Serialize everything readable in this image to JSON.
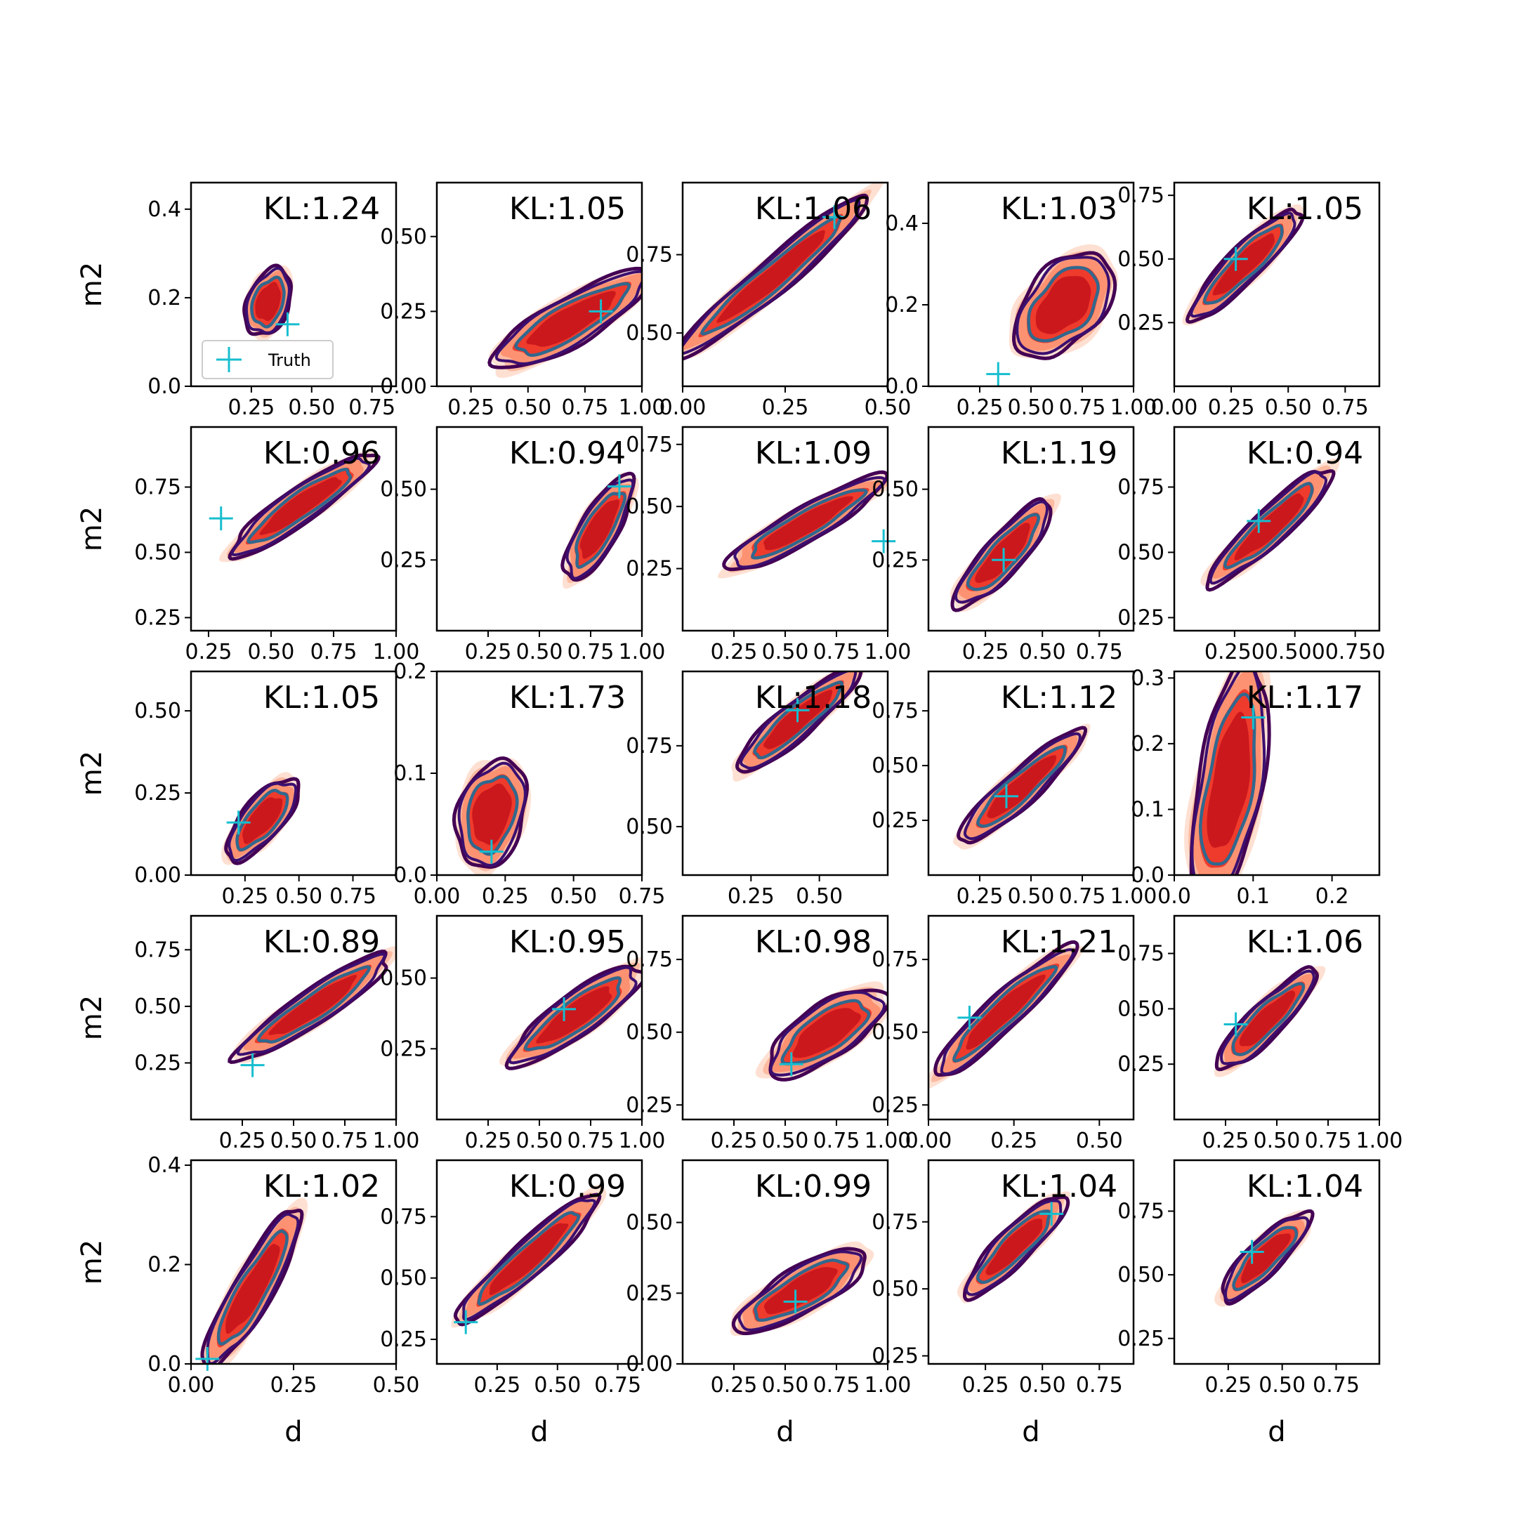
{
  "chart_data": {
    "type": "contour-grid",
    "grid": {
      "rows": 5,
      "cols": 5
    },
    "xlabel": "d",
    "ylabel": "m2",
    "legend": {
      "label": "Truth",
      "marker": "+",
      "color": "#17becf",
      "placement": "lower-left of first panel"
    },
    "colors": {
      "fill_levels": [
        "#fee0d2",
        "#fcbba1",
        "#fc9272",
        "#ef3b2c",
        "#cb181d"
      ],
      "contour_outer": "#440154",
      "contour_mid": "#3b0f70",
      "contour_inner": "#31688e",
      "truth": "#17becf"
    },
    "panels": [
      {
        "kl": "KL:1.24",
        "xlim": [
          0.0,
          0.85
        ],
        "ylim": [
          0.0,
          0.46
        ],
        "xticks": [
          "0.25",
          "0.50",
          "0.75"
        ],
        "xtickv": [
          0.25,
          0.5,
          0.75
        ],
        "yticks": [
          "0.0",
          "0.2",
          "0.4"
        ],
        "ytickv": [
          0.0,
          0.2,
          0.4
        ],
        "cx": 0.32,
        "cy": 0.19,
        "w": 0.26,
        "h": 0.38,
        "ang": 70,
        "truth": [
          0.4,
          0.14
        ],
        "legend": true
      },
      {
        "kl": "KL:1.05",
        "xlim": [
          0.1,
          1.0
        ],
        "ylim": [
          0.0,
          0.68
        ],
        "xticks": [
          "0.25",
          "0.50",
          "0.75",
          "1.00"
        ],
        "xtickv": [
          0.25,
          0.5,
          0.75,
          1.0
        ],
        "yticks": [
          "0.00",
          "0.25",
          "0.50"
        ],
        "ytickv": [
          0.0,
          0.25,
          0.5
        ],
        "cx": 0.69,
        "cy": 0.22,
        "w": 0.7,
        "h": 0.26,
        "ang": 30,
        "truth": [
          0.82,
          0.25
        ]
      },
      {
        "kl": "KL:1.06",
        "xlim": [
          0.0,
          0.5
        ],
        "ylim": [
          0.33,
          0.98
        ],
        "xticks": [
          "0.00",
          "0.25",
          "0.50"
        ],
        "xtickv": [
          0.0,
          0.25,
          0.5
        ],
        "yticks": [
          "0.50",
          "0.75"
        ],
        "ytickv": [
          0.5,
          0.75
        ],
        "cx": 0.22,
        "cy": 0.68,
        "w": 0.55,
        "h": 0.14,
        "ang": 40,
        "truth": [
          0.37,
          0.87
        ]
      },
      {
        "kl": "KL:1.03",
        "xlim": [
          0.0,
          1.0
        ],
        "ylim": [
          0.0,
          0.5
        ],
        "xticks": [
          "0.25",
          "0.50",
          "0.75",
          "1.00"
        ],
        "xtickv": [
          0.25,
          0.5,
          0.75,
          1.0
        ],
        "yticks": [
          "0.0",
          "0.2",
          "0.4"
        ],
        "ytickv": [
          0.0,
          0.2,
          0.4
        ],
        "cx": 0.66,
        "cy": 0.2,
        "w": 0.54,
        "h": 0.38,
        "ang": 48,
        "truth": [
          0.34,
          0.03
        ]
      },
      {
        "kl": "KL:1.05",
        "xlim": [
          0.0,
          0.9
        ],
        "ylim": [
          0.0,
          0.8
        ],
        "xticks": [
          "0.00",
          "0.25",
          "0.50",
          "0.75"
        ],
        "xtickv": [
          0.0,
          0.25,
          0.5,
          0.75
        ],
        "yticks": [
          "0.25",
          "0.50",
          "0.75"
        ],
        "ytickv": [
          0.25,
          0.5,
          0.75
        ],
        "cx": 0.31,
        "cy": 0.48,
        "w": 0.6,
        "h": 0.2,
        "ang": 45,
        "truth": [
          0.27,
          0.5
        ]
      },
      {
        "kl": "KL:0.96",
        "xlim": [
          0.18,
          1.0
        ],
        "ylim": [
          0.2,
          0.98
        ],
        "xticks": [
          "0.25",
          "0.50",
          "0.75",
          "1.00"
        ],
        "xtickv": [
          0.25,
          0.5,
          0.75,
          1.0
        ],
        "yticks": [
          "0.25",
          "0.50",
          "0.75"
        ],
        "ytickv": [
          0.25,
          0.5,
          0.75
        ],
        "cx": 0.62,
        "cy": 0.68,
        "w": 0.62,
        "h": 0.18,
        "ang": 35,
        "truth": [
          0.3,
          0.63
        ]
      },
      {
        "kl": "KL:0.94",
        "xlim": [
          0.0,
          1.0
        ],
        "ylim": [
          0.0,
          0.72
        ],
        "xticks": [
          "0.25",
          "0.50",
          "0.75",
          "1.00"
        ],
        "xtickv": [
          0.25,
          0.5,
          0.75,
          1.0
        ],
        "yticks": [
          "0.25",
          "0.50"
        ],
        "ytickv": [
          0.25,
          0.5
        ],
        "cx": 0.79,
        "cy": 0.36,
        "w": 0.52,
        "h": 0.22,
        "ang": 60,
        "truth": [
          0.89,
          0.51
        ]
      },
      {
        "kl": "KL:1.09",
        "xlim": [
          0.0,
          1.0
        ],
        "ylim": [
          0.0,
          0.82
        ],
        "xticks": [
          "0.25",
          "0.50",
          "0.75",
          "1.00"
        ],
        "xtickv": [
          0.25,
          0.5,
          0.75,
          1.0
        ],
        "yticks": [
          "0.25",
          "0.50",
          "0.75"
        ],
        "ytickv": [
          0.25,
          0.5,
          0.75
        ],
        "cx": 0.6,
        "cy": 0.43,
        "w": 0.8,
        "h": 0.22,
        "ang": 30,
        "truth": [
          0.98,
          0.36
        ]
      },
      {
        "kl": "KL:1.19",
        "xlim": [
          0.0,
          0.9
        ],
        "ylim": [
          0.0,
          0.72
        ],
        "xticks": [
          "0.25",
          "0.50",
          "0.75"
        ],
        "xtickv": [
          0.25,
          0.5,
          0.75
        ],
        "yticks": [
          "0.25",
          "0.50"
        ],
        "ytickv": [
          0.25,
          0.5
        ],
        "cx": 0.33,
        "cy": 0.27,
        "w": 0.55,
        "h": 0.22,
        "ang": 48,
        "truth": [
          0.33,
          0.25
        ]
      },
      {
        "kl": "KL:0.94",
        "xlim": [
          0.0,
          0.85
        ],
        "ylim": [
          0.2,
          0.98
        ],
        "xticks": [
          "0.250",
          "0.500",
          "0.750"
        ],
        "xtickv": [
          0.25,
          0.5,
          0.75
        ],
        "yticks": [
          "0.25",
          "0.50",
          "0.75"
        ],
        "ytickv": [
          0.25,
          0.5,
          0.75
        ],
        "cx": 0.4,
        "cy": 0.6,
        "w": 0.62,
        "h": 0.2,
        "ang": 43,
        "truth": [
          0.35,
          0.62
        ]
      },
      {
        "kl": "KL:1.05",
        "xlim": [
          0.0,
          0.95
        ],
        "ylim": [
          0.0,
          0.62
        ],
        "xticks": [
          "0.25",
          "0.50",
          "0.75"
        ],
        "xtickv": [
          0.25,
          0.5,
          0.75
        ],
        "yticks": [
          "0.00",
          "0.25",
          "0.50"
        ],
        "ytickv": [
          0.0,
          0.25,
          0.5
        ],
        "cx": 0.33,
        "cy": 0.17,
        "w": 0.42,
        "h": 0.2,
        "ang": 50,
        "truth": [
          0.22,
          0.16
        ]
      },
      {
        "kl": "KL:1.73",
        "xlim": [
          0.0,
          0.75
        ],
        "ylim": [
          0.0,
          0.2
        ],
        "xticks": [
          "0.00",
          "0.25",
          "0.50",
          "0.75"
        ],
        "xtickv": [
          0.0,
          0.25,
          0.5,
          0.75
        ],
        "yticks": [
          "0.0",
          "0.1",
          "0.2"
        ],
        "ytickv": [
          0.0,
          0.1,
          0.2
        ],
        "cx": 0.2,
        "cy": 0.06,
        "w": 0.36,
        "h": 0.3,
        "ang": 75,
        "truth": [
          0.2,
          0.023
        ]
      },
      {
        "kl": "KL:1.18",
        "xlim": [
          0.0,
          0.75
        ],
        "ylim": [
          0.35,
          0.98
        ],
        "xticks": [
          "0.25",
          "0.50"
        ],
        "xtickv": [
          0.25,
          0.5
        ],
        "yticks": [
          "0.50",
          "0.75"
        ],
        "ytickv": [
          0.5,
          0.75
        ],
        "cx": 0.42,
        "cy": 0.83,
        "w": 0.52,
        "h": 0.14,
        "ang": 40,
        "truth": [
          0.42,
          0.86
        ]
      },
      {
        "kl": "KL:1.12",
        "xlim": [
          0.0,
          1.0
        ],
        "ylim": [
          0.0,
          0.93
        ],
        "xticks": [
          "0.25",
          "0.50",
          "0.75",
          "1.00"
        ],
        "xtickv": [
          0.25,
          0.5,
          0.75,
          1.0
        ],
        "yticks": [
          "0.25",
          "0.50",
          "0.75"
        ],
        "ytickv": [
          0.25,
          0.5,
          0.75
        ],
        "cx": 0.45,
        "cy": 0.4,
        "w": 0.72,
        "h": 0.22,
        "ang": 42,
        "truth": [
          0.38,
          0.36
        ]
      },
      {
        "kl": "KL:1.17",
        "xlim": [
          0.0,
          0.26
        ],
        "ylim": [
          0.0,
          0.31
        ],
        "xticks": [
          "0.0",
          "0.1",
          "0.2"
        ],
        "xtickv": [
          0.0,
          0.1,
          0.2
        ],
        "yticks": [
          "0.0",
          "0.1",
          "0.2",
          "0.3"
        ],
        "ytickv": [
          0.0,
          0.1,
          0.2,
          0.3
        ],
        "cx": 0.07,
        "cy": 0.14,
        "w": 0.28,
        "h": 0.16,
        "ang": 80,
        "truth": [
          0.1,
          0.24
        ]
      },
      {
        "kl": "KL:0.89",
        "xlim": [
          0.0,
          1.0
        ],
        "ylim": [
          0.0,
          0.9
        ],
        "xticks": [
          "0.25",
          "0.50",
          "0.75",
          "1.00"
        ],
        "xtickv": [
          0.25,
          0.5,
          0.75,
          1.0
        ],
        "yticks": [
          "0.25",
          "0.50",
          "0.75"
        ],
        "ytickv": [
          0.25,
          0.5,
          0.75
        ],
        "cx": 0.6,
        "cy": 0.5,
        "w": 0.8,
        "h": 0.2,
        "ang": 34,
        "truth": [
          0.3,
          0.24
        ]
      },
      {
        "kl": "KL:0.95",
        "xlim": [
          0.0,
          1.0
        ],
        "ylim": [
          0.0,
          0.72
        ],
        "xticks": [
          "0.25",
          "0.50",
          "0.75",
          "1.00"
        ],
        "xtickv": [
          0.25,
          0.5,
          0.75,
          1.0
        ],
        "yticks": [
          "0.25",
          "0.50"
        ],
        "ytickv": [
          0.25,
          0.5
        ],
        "cx": 0.68,
        "cy": 0.37,
        "w": 0.7,
        "h": 0.24,
        "ang": 36,
        "truth": [
          0.62,
          0.39
        ]
      },
      {
        "kl": "KL:0.98",
        "xlim": [
          0.0,
          1.0
        ],
        "ylim": [
          0.2,
          0.9
        ],
        "xticks": [
          "0.25",
          "0.50",
          "0.75",
          "1.00"
        ],
        "xtickv": [
          0.25,
          0.5,
          0.75,
          1.0
        ],
        "yticks": [
          "0.25",
          "0.50",
          "0.75"
        ],
        "ytickv": [
          0.25,
          0.5,
          0.75
        ],
        "cx": 0.7,
        "cy": 0.5,
        "w": 0.6,
        "h": 0.3,
        "ang": 34,
        "truth": [
          0.53,
          0.39
        ]
      },
      {
        "kl": "KL:1.21",
        "xlim": [
          0.0,
          0.6
        ],
        "ylim": [
          0.2,
          0.9
        ],
        "xticks": [
          "0.00",
          "0.25",
          "0.50"
        ],
        "xtickv": [
          0.0,
          0.25,
          0.5
        ],
        "yticks": [
          "0.25",
          "0.50",
          "0.75"
        ],
        "ytickv": [
          0.25,
          0.5,
          0.75
        ],
        "cx": 0.22,
        "cy": 0.57,
        "w": 0.5,
        "h": 0.17,
        "ang": 43,
        "truth": [
          0.12,
          0.55
        ]
      },
      {
        "kl": "KL:1.06",
        "xlim": [
          0.0,
          1.0
        ],
        "ylim": [
          0.0,
          0.92
        ],
        "xticks": [
          "0.25",
          "0.50",
          "0.75",
          "1.00"
        ],
        "xtickv": [
          0.25,
          0.5,
          0.75,
          1.0
        ],
        "yticks": [
          "0.25",
          "0.50",
          "0.75"
        ],
        "ytickv": [
          0.25,
          0.5,
          0.75
        ],
        "cx": 0.45,
        "cy": 0.45,
        "w": 0.6,
        "h": 0.2,
        "ang": 45,
        "truth": [
          0.3,
          0.43
        ]
      },
      {
        "kl": "KL:1.02",
        "xlim": [
          0.0,
          0.5
        ],
        "ylim": [
          0.0,
          0.41
        ],
        "xticks": [
          "0.00",
          "0.25",
          "0.50"
        ],
        "xtickv": [
          0.0,
          0.25,
          0.5
        ],
        "yticks": [
          "0.0",
          "0.2",
          "0.4"
        ],
        "ytickv": [
          0.0,
          0.2,
          0.4
        ],
        "cx": 0.15,
        "cy": 0.15,
        "w": 0.4,
        "h": 0.13,
        "ang": 60,
        "truth": [
          0.04,
          0.01
        ]
      },
      {
        "kl": "KL:0.99",
        "xlim": [
          0.0,
          0.85
        ],
        "ylim": [
          0.15,
          0.98
        ],
        "xticks": [
          "0.25",
          "0.50",
          "0.75"
        ],
        "xtickv": [
          0.25,
          0.5,
          0.75
        ],
        "yticks": [
          "0.25",
          "0.50",
          "0.75"
        ],
        "ytickv": [
          0.25,
          0.5,
          0.75
        ],
        "cx": 0.38,
        "cy": 0.58,
        "w": 0.7,
        "h": 0.14,
        "ang": 42,
        "truth": [
          0.12,
          0.32
        ]
      },
      {
        "kl": "KL:0.99",
        "xlim": [
          0.0,
          1.0
        ],
        "ylim": [
          0.0,
          0.72
        ],
        "xticks": [
          "0.25",
          "0.50",
          "0.75",
          "1.00"
        ],
        "xtickv": [
          0.25,
          0.5,
          0.75,
          1.0
        ],
        "yticks": [
          "0.00",
          "0.25",
          "0.50"
        ],
        "ytickv": [
          0.0,
          0.25,
          0.5
        ],
        "cx": 0.58,
        "cy": 0.26,
        "w": 0.65,
        "h": 0.26,
        "ang": 30,
        "truth": [
          0.55,
          0.22
        ]
      },
      {
        "kl": "KL:1.04",
        "xlim": [
          0.0,
          0.9
        ],
        "ylim": [
          0.22,
          0.98
        ],
        "xticks": [
          "0.25",
          "0.50",
          "0.75"
        ],
        "xtickv": [
          0.25,
          0.5,
          0.75
        ],
        "yticks": [
          "0.25",
          "0.50",
          "0.75"
        ],
        "ytickv": [
          0.25,
          0.5,
          0.75
        ],
        "cx": 0.38,
        "cy": 0.66,
        "w": 0.55,
        "h": 0.14,
        "ang": 45,
        "truth": [
          0.54,
          0.78
        ]
      },
      {
        "kl": "KL:1.04",
        "xlim": [
          0.0,
          0.95
        ],
        "ylim": [
          0.15,
          0.95
        ],
        "xticks": [
          "0.25",
          "0.50",
          "0.75"
        ],
        "xtickv": [
          0.25,
          0.5,
          0.75
        ],
        "yticks": [
          "0.25",
          "0.50",
          "0.75"
        ],
        "ytickv": [
          0.25,
          0.5,
          0.75
        ],
        "cx": 0.42,
        "cy": 0.57,
        "w": 0.5,
        "h": 0.17,
        "ang": 45,
        "truth": [
          0.36,
          0.59
        ]
      }
    ]
  }
}
